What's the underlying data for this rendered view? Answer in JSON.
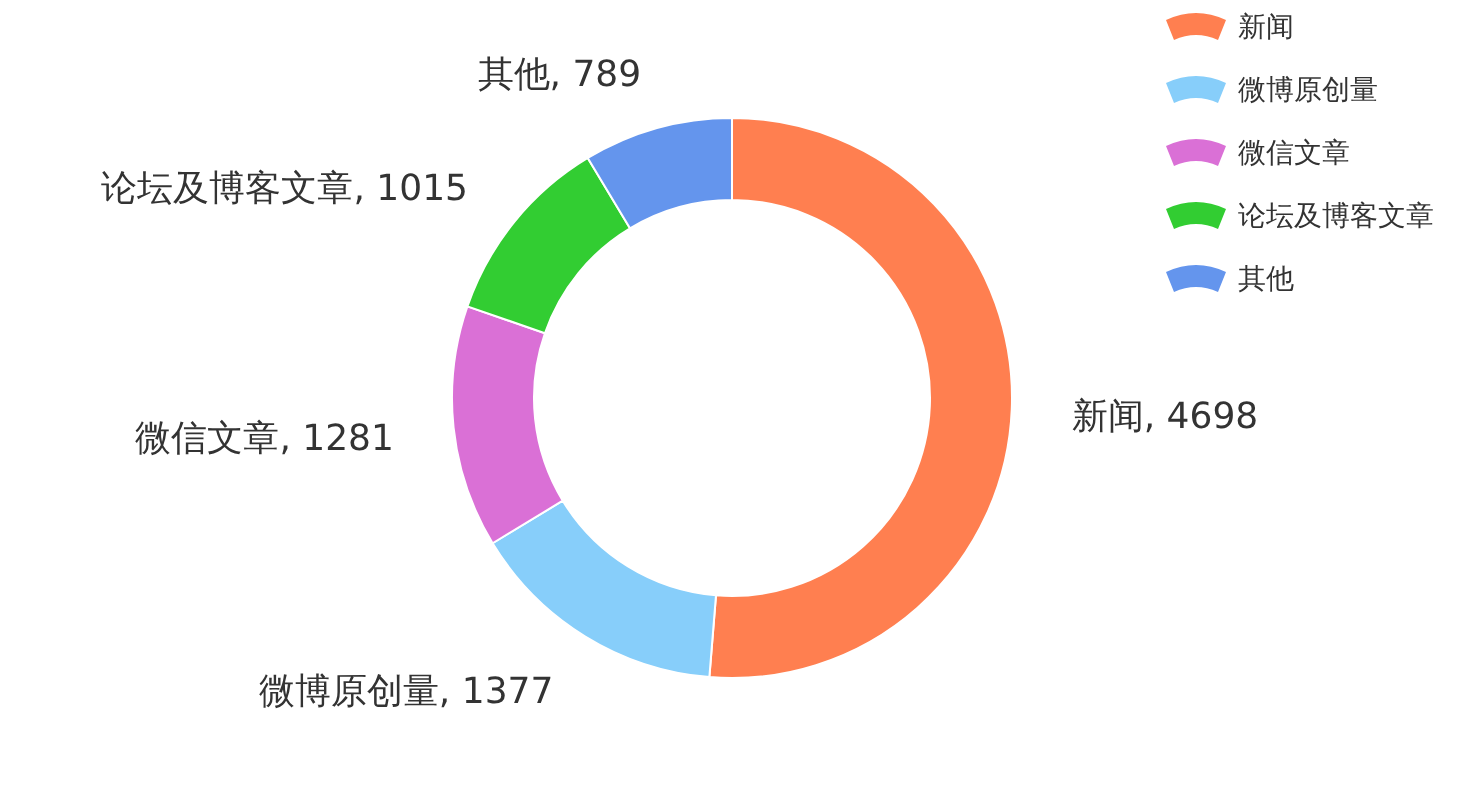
{
  "chart_data": {
    "type": "donut",
    "categories": [
      "新闻",
      "微博原创量",
      "微信文章",
      "论坛及博客文章",
      "其他"
    ],
    "values": [
      4698,
      1377,
      1281,
      1015,
      789
    ],
    "value_labels": [
      ", 4698",
      ", 1377",
      ", 1281",
      ", 1015",
      ", 789"
    ],
    "colors": [
      "#ff7f50",
      "#87cefa",
      "#da70d6",
      "#32cd32",
      "#6495ed"
    ],
    "legend": "top right"
  }
}
